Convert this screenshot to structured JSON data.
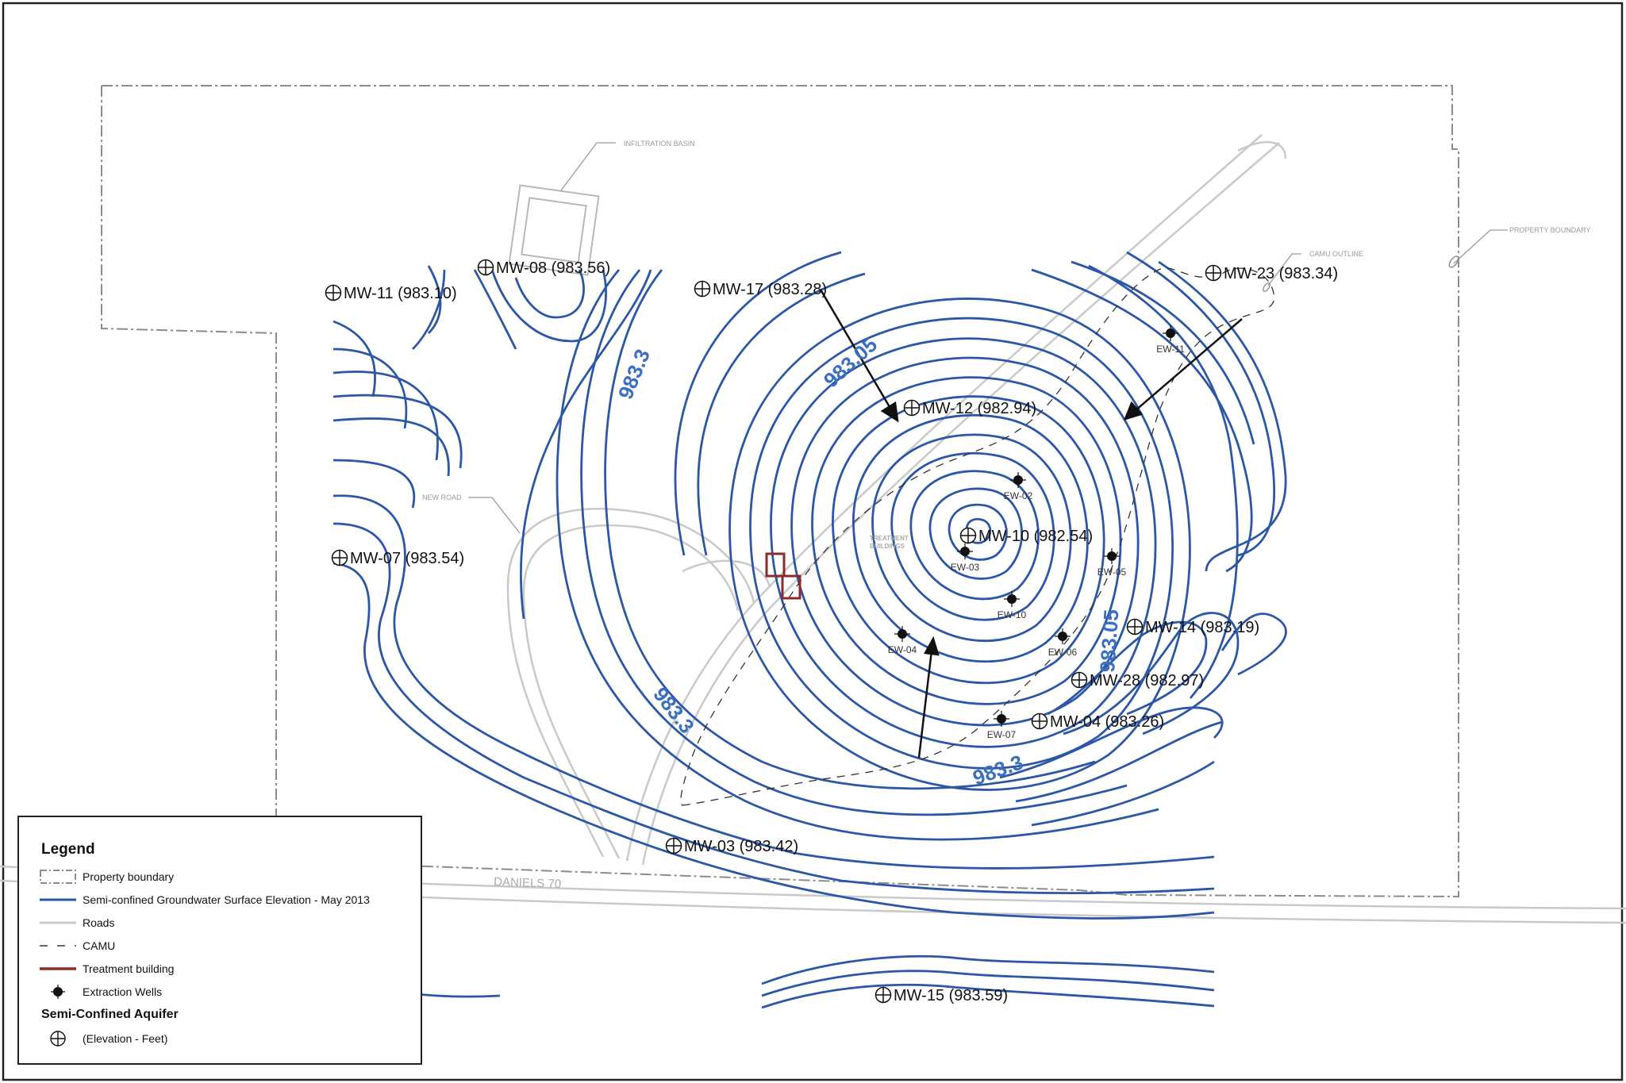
{
  "colors": {
    "contour": "#2c57a6",
    "contour_label": "#3a6fc2",
    "road": "#c9c9c9",
    "boundary": "#8c8c8c",
    "treatment": "#8b2a2a",
    "well": "#111111",
    "frame": "#222222"
  },
  "annotations": {
    "infiltration_basin": "INFILTRATION BASIN",
    "property_boundary": "PROPERTY BOUNDARY",
    "camu_outline": "CAMU OUTLINE",
    "new_road": "NEW ROAD",
    "treatment_buildings_1": "TREATMENT",
    "treatment_buildings_2": "BUILDINGS",
    "road_name": "DANIELS 70"
  },
  "monitoring_wells": [
    {
      "id": "MW-08",
      "elevation_ft": 983.56,
      "label": "MW-08 (983.56)"
    },
    {
      "id": "MW-11",
      "elevation_ft": 983.1,
      "label": "MW-11 (983.10)"
    },
    {
      "id": "MW-17",
      "elevation_ft": 983.28,
      "label": "MW-17 (983.28)"
    },
    {
      "id": "MW-23",
      "elevation_ft": 983.34,
      "label": "MW-23 (983.34)"
    },
    {
      "id": "MW-12",
      "elevation_ft": 982.94,
      "label": "MW-12 (982.94)"
    },
    {
      "id": "MW-10",
      "elevation_ft": 982.54,
      "label": "MW-10 (982.54)"
    },
    {
      "id": "MW-07",
      "elevation_ft": 983.54,
      "label": "MW-07 (983.54)"
    },
    {
      "id": "MW-14",
      "elevation_ft": 983.19,
      "label": "MW-14 (983.19)"
    },
    {
      "id": "MW-28",
      "elevation_ft": 982.97,
      "label": "MW-28 (982.97)"
    },
    {
      "id": "MW-04",
      "elevation_ft": 983.26,
      "label": "MW-04 (983.26)"
    },
    {
      "id": "MW-03",
      "elevation_ft": 983.42,
      "label": "MW-03 (983.42)"
    },
    {
      "id": "MW-15",
      "elevation_ft": 983.59,
      "label": "MW-15 (983.59)"
    }
  ],
  "extraction_wells": [
    {
      "id": "EW-11",
      "label": "EW-11"
    },
    {
      "id": "EW-02",
      "label": "EW-02"
    },
    {
      "id": "EW-03",
      "label": "EW-03"
    },
    {
      "id": "EW-05",
      "label": "EW-05"
    },
    {
      "id": "EW-10",
      "label": "EW-10"
    },
    {
      "id": "EW-04",
      "label": "EW-04"
    },
    {
      "id": "EW-06",
      "label": "EW-06"
    },
    {
      "id": "EW-07",
      "label": "EW-07"
    }
  ],
  "contour_labels": [
    {
      "text": "983.3"
    },
    {
      "text": "983.05"
    },
    {
      "text": "983.3"
    },
    {
      "text": "983.3"
    },
    {
      "text": "983.05"
    }
  ],
  "legend": {
    "title": "Legend",
    "items": [
      {
        "label": "Property boundary"
      },
      {
        "label": "Semi-confined Groundwater Surface Elevation - May 2013"
      },
      {
        "label": "Roads"
      },
      {
        "label": "CAMU"
      },
      {
        "label": "Treatment building"
      },
      {
        "label": "Extraction Wells"
      }
    ],
    "subheading": "Semi-Confined Aquifer",
    "sub_item": "(Elevation - Feet)"
  }
}
